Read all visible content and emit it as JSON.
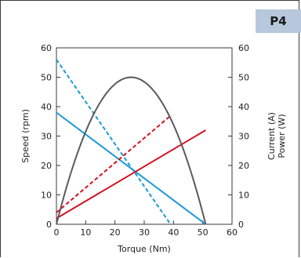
{
  "badge": "P4",
  "chart_data": {
    "type": "line",
    "xlabel": "Torque (Nm)",
    "ylabel": "Speed (rpm)",
    "y2label_lines": [
      "Current (A)",
      "Power (W)"
    ],
    "xlim": [
      0,
      60
    ],
    "ylim": [
      0,
      60
    ],
    "y2lim": [
      0,
      60
    ],
    "xticks": [
      0,
      10,
      20,
      30,
      40,
      50,
      60
    ],
    "yticks": [
      0,
      10,
      20,
      30,
      40,
      50,
      60
    ],
    "y2ticks": [
      0,
      10,
      20,
      30,
      40,
      50,
      60
    ],
    "grid": false,
    "series": [
      {
        "kind": "straight",
        "style": "solid",
        "color": "#1a9ad6",
        "x": [
          0,
          51
        ],
        "y": [
          38,
          0
        ]
      },
      {
        "kind": "straight",
        "style": "dashed",
        "color": "#1a9ad6",
        "x": [
          0,
          39
        ],
        "y": [
          56,
          0
        ]
      },
      {
        "kind": "straight",
        "style": "solid",
        "color": "#d4101e",
        "x": [
          0,
          51
        ],
        "y": [
          2,
          32
        ]
      },
      {
        "kind": "straight",
        "style": "dashed",
        "color": "#d4101e",
        "x": [
          0,
          38.5
        ],
        "y": [
          4,
          36.5
        ]
      },
      {
        "kind": "parabola",
        "style": "solid",
        "color": "#5a5a5a",
        "x": [
          0,
          25.5,
          51
        ],
        "y": [
          0,
          50,
          0
        ]
      }
    ]
  }
}
